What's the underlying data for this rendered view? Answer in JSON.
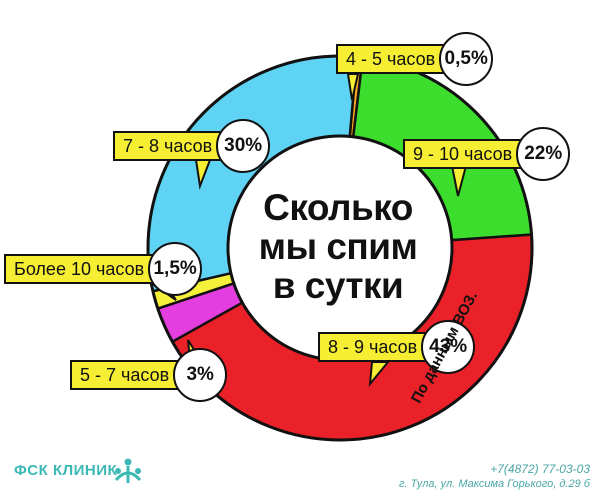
{
  "chart_data": {
    "type": "pie",
    "title": "Сколько мы спим в сутки",
    "title_lines": [
      "Сколько",
      "мы спим",
      "в сутки"
    ],
    "source": "По данным ВОЗ.",
    "categories": [
      "4 - 5 часов",
      "9 - 10 часов",
      "8 - 9 часов",
      "5 - 7 часов",
      "Более 10 часов",
      "7 - 8 часов"
    ],
    "values": [
      0.5,
      22,
      43,
      3,
      1.5,
      30
    ],
    "value_labels": [
      "0,5%",
      "22%",
      "43%",
      "3%",
      "1,5%",
      "30%"
    ],
    "colors": [
      "#f3a51f",
      "#3cdd2c",
      "#ea2128",
      "#e43ee0",
      "#f5f03a",
      "#5fd3f3"
    ],
    "style": "donut"
  },
  "footer": {
    "brand": "ФСК КЛИНИК",
    "brand_icon": "clinic-logo-icon",
    "phone": "+7(4872) 77-03-03",
    "address": "г. Тула, ул. Максима Горького, д.29 б"
  }
}
